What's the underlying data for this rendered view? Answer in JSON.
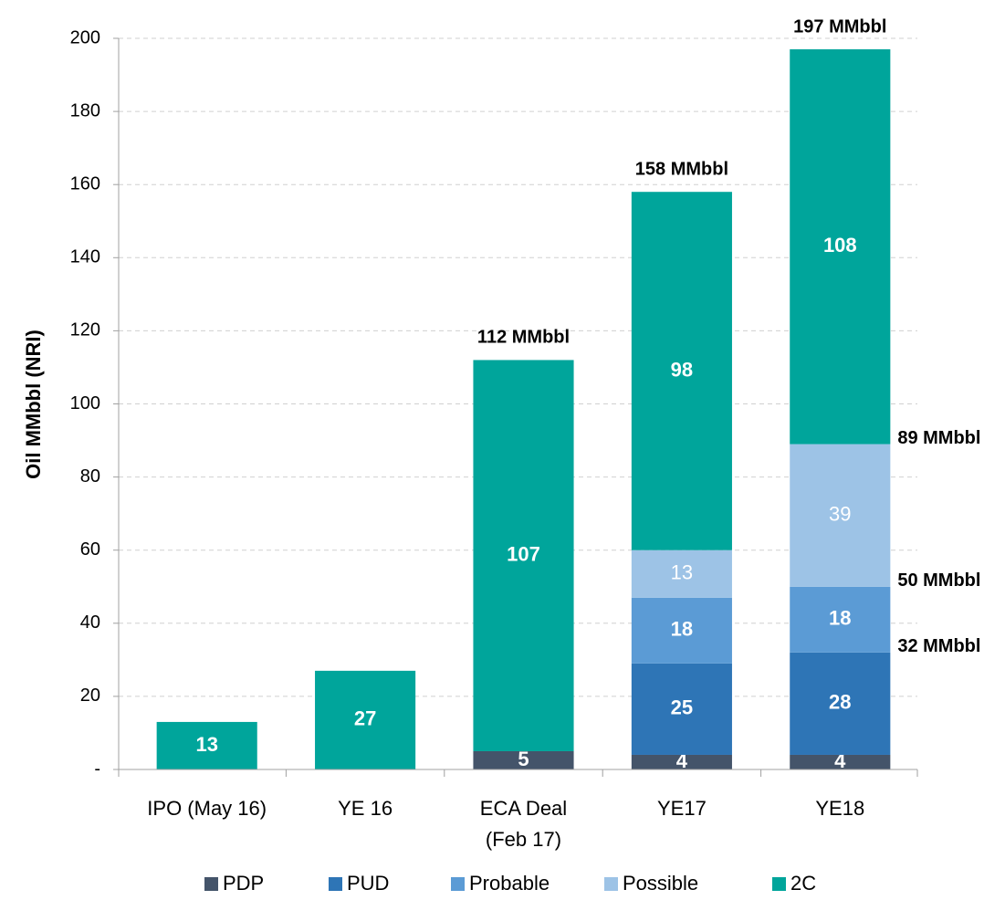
{
  "chart_data": {
    "type": "stacked_bar",
    "ylabel": "Oil MMbbl (NRI)",
    "categories": [
      "IPO (May 16)",
      "YE 16",
      "ECA Deal (Feb 17)",
      "YE17",
      "YE18"
    ],
    "series": [
      {
        "name": "PDP",
        "color": "#44546a",
        "values": [
          null,
          null,
          5,
          4,
          4
        ]
      },
      {
        "name": "PUD",
        "color": "#2e75b6",
        "values": [
          null,
          null,
          null,
          25,
          28
        ]
      },
      {
        "name": "Probable",
        "color": "#5b9bd5",
        "values": [
          null,
          null,
          null,
          18,
          18
        ]
      },
      {
        "name": "Possible",
        "color": "#9dc3e6",
        "values": [
          null,
          null,
          null,
          13,
          39
        ]
      },
      {
        "name": "2C",
        "color": "#00a59b",
        "values": [
          13,
          27,
          107,
          98,
          108
        ]
      }
    ],
    "totals": [
      {
        "text": "112 MMbbl",
        "value": 112,
        "category": "ECA Deal (Feb 17)"
      },
      {
        "text": "158 MMbbl",
        "value": 158,
        "category": "YE17"
      },
      {
        "text": "197 MMbbl",
        "value": 197,
        "category": "YE18"
      }
    ],
    "subtotals": [
      {
        "text": "89 MMbbl",
        "value": 89,
        "category": "YE18"
      },
      {
        "text": "50 MMbbl",
        "value": 50,
        "category": "YE18"
      },
      {
        "text": "32 MMbbl",
        "value": 32,
        "category": "YE18"
      }
    ],
    "ylim": [
      0,
      200
    ],
    "yticks": [
      {
        "value": 0,
        "label": "-"
      },
      20,
      40,
      60,
      80,
      100,
      120,
      140,
      160,
      180,
      200
    ],
    "grid": true,
    "legend": "bottom"
  }
}
